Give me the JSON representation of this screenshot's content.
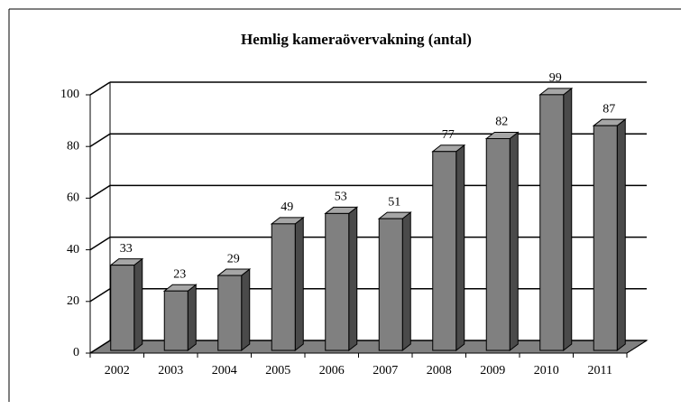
{
  "chart_data": {
    "type": "bar3d",
    "title": "Hemlig kameraövervakning (antal)",
    "categories": [
      "2002",
      "2003",
      "2004",
      "2005",
      "2006",
      "2007",
      "2008",
      "2009",
      "2010",
      "2011"
    ],
    "values": [
      33,
      23,
      29,
      49,
      53,
      51,
      77,
      82,
      99,
      87
    ],
    "color": "#808080",
    "ylim": [
      0,
      100
    ],
    "yticks": [
      0,
      20,
      40,
      60,
      80,
      100
    ],
    "grid": true
  }
}
